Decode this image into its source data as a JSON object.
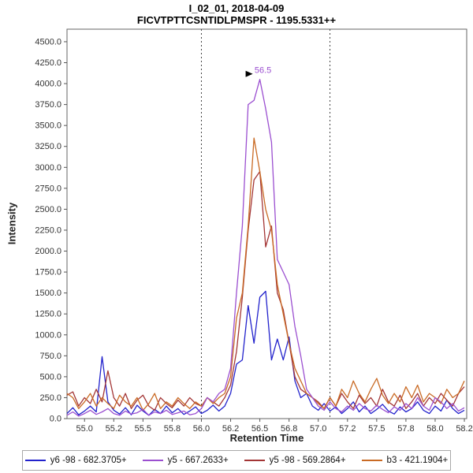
{
  "header": {
    "title_line1": "I_02_01, 2018-04-09",
    "title_line2": "FICVTPTTCSNTIDLPMSPR - 1195.5331++"
  },
  "chart_data": {
    "type": "line",
    "title": "I_02_01, 2018-04-09",
    "subtitle": "FICVTPTTCSNTIDLPMSPR - 1195.5331++",
    "xlabel": "Retention Time",
    "ylabel": "Intensity",
    "xlim": [
      54.85,
      58.27
    ],
    "ylim": [
      0,
      4650
    ],
    "grid": false,
    "legend_position": "bottom",
    "x_tick_values": [
      55.0,
      55.25,
      55.5,
      55.75,
      56.0,
      56.25,
      56.5,
      56.75,
      57.0,
      57.25,
      57.5,
      57.75,
      58.0,
      58.25
    ],
    "x_tick_labels": [
      "55.0",
      "55.2",
      "55.5",
      "55.8",
      "56.0",
      "56.2",
      "56.5",
      "56.8",
      "57.0",
      "57.2",
      "57.5",
      "57.8",
      "58.0",
      "58.2"
    ],
    "y_ticks": [
      0,
      250,
      500,
      750,
      1000,
      1250,
      1500,
      1750,
      2000,
      2250,
      2500,
      2750,
      3000,
      3250,
      3500,
      3750,
      4000,
      4250,
      4500
    ],
    "boundaries": [
      56.0,
      57.1
    ],
    "peak_annotation": {
      "x": 56.5,
      "y": 4050,
      "label": "56.5",
      "marker": "right-triangle",
      "color": "#9b4fd0"
    },
    "x": [
      54.85,
      54.9,
      54.95,
      55.0,
      55.05,
      55.1,
      55.15,
      55.2,
      55.25,
      55.3,
      55.35,
      55.4,
      55.45,
      55.5,
      55.55,
      55.6,
      55.65,
      55.7,
      55.75,
      55.8,
      55.85,
      55.9,
      55.95,
      56.0,
      56.05,
      56.1,
      56.15,
      56.2,
      56.25,
      56.3,
      56.35,
      56.4,
      56.45,
      56.5,
      56.55,
      56.6,
      56.65,
      56.7,
      56.75,
      56.8,
      56.85,
      56.9,
      56.95,
      57.0,
      57.05,
      57.1,
      57.15,
      57.2,
      57.25,
      57.3,
      57.35,
      57.4,
      57.45,
      57.5,
      57.55,
      57.6,
      57.65,
      57.7,
      57.75,
      57.8,
      57.85,
      57.9,
      57.95,
      58.0,
      58.05,
      58.1,
      58.15,
      58.2,
      58.25
    ],
    "series": [
      {
        "id": "y6-98",
        "legend_label": "y6 -98 - 682.3705+",
        "color": "#2222cc",
        "values": [
          60,
          130,
          45,
          90,
          150,
          80,
          740,
          200,
          100,
          55,
          130,
          45,
          160,
          90,
          40,
          110,
          60,
          150,
          70,
          120,
          50,
          90,
          140,
          60,
          100,
          160,
          90,
          150,
          300,
          650,
          700,
          1350,
          900,
          1450,
          1520,
          700,
          950,
          700,
          975,
          450,
          250,
          300,
          150,
          100,
          180,
          90,
          140,
          60,
          120,
          200,
          80,
          150,
          60,
          110,
          170,
          90,
          55,
          140,
          80,
          120,
          200,
          100,
          60,
          150,
          90,
          220,
          120,
          60,
          100
        ]
      },
      {
        "id": "y5",
        "legend_label": "y5 - 667.2633+",
        "color": "#9b4fd0",
        "values": [
          40,
          80,
          30,
          60,
          100,
          50,
          80,
          120,
          60,
          40,
          90,
          55,
          70,
          110,
          40,
          80,
          60,
          100,
          50,
          70,
          90,
          45,
          60,
          120,
          250,
          200,
          300,
          350,
          600,
          1500,
          2300,
          3750,
          3800,
          4050,
          3700,
          3300,
          1900,
          1750,
          1600,
          1100,
          750,
          350,
          250,
          150,
          100,
          200,
          120,
          80,
          150,
          100,
          180,
          120,
          90,
          160,
          110,
          70,
          140,
          100,
          180,
          120,
          250,
          150,
          100,
          250,
          200,
          120,
          180,
          90,
          130
        ]
      },
      {
        "id": "y5-98",
        "legend_label": "y5 -98 - 569.2864+",
        "color": "#a33535",
        "values": [
          280,
          320,
          150,
          250,
          180,
          350,
          200,
          570,
          250,
          150,
          300,
          120,
          220,
          280,
          150,
          100,
          250,
          180,
          130,
          220,
          150,
          250,
          180,
          150,
          250,
          200,
          150,
          250,
          400,
          800,
          1450,
          2250,
          2850,
          2950,
          2050,
          2300,
          1500,
          1300,
          900,
          500,
          350,
          300,
          250,
          200,
          120,
          250,
          150,
          300,
          200,
          120,
          280,
          180,
          250,
          150,
          350,
          200,
          150,
          280,
          120,
          200,
          300,
          150,
          250,
          180,
          300,
          220,
          150,
          300,
          380
        ]
      },
      {
        "id": "b3",
        "legend_label": "b3 - 421.1904+",
        "color": "#c96a24",
        "values": [
          300,
          250,
          120,
          200,
          300,
          150,
          250,
          180,
          120,
          280,
          200,
          150,
          250,
          100,
          180,
          300,
          120,
          200,
          150,
          250,
          180,
          120,
          200,
          150,
          250,
          180,
          250,
          300,
          500,
          1200,
          1500,
          2300,
          3350,
          2950,
          2500,
          2250,
          1600,
          1250,
          900,
          600,
          450,
          300,
          250,
          180,
          120,
          250,
          150,
          350,
          250,
          450,
          300,
          200,
          350,
          480,
          280,
          180,
          300,
          200,
          380,
          250,
          400,
          200,
          300,
          250,
          180,
          350,
          250,
          300,
          450
        ]
      }
    ]
  }
}
